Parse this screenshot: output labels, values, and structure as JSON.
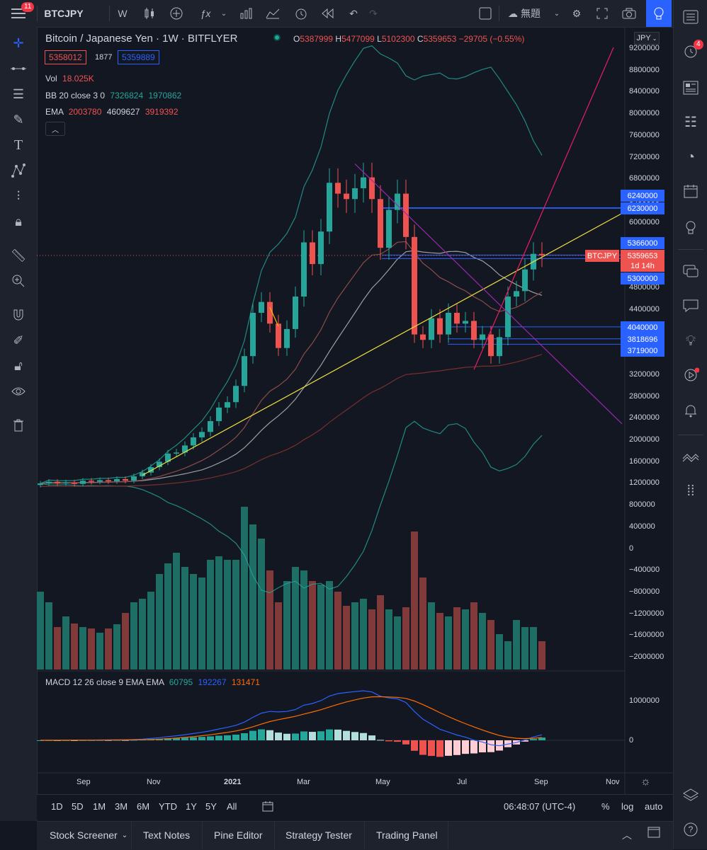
{
  "topbar": {
    "menu_badge": "11",
    "symbol": "BTCJPY",
    "interval": "W",
    "layout_name": "無題"
  },
  "legend": {
    "title": "Bitcoin / Japanese Yen · 1W · BITFLYER",
    "o_label": "O",
    "o": "5387999",
    "h_label": "H",
    "h": "5477099",
    "l_label": "L",
    "l": "5102300",
    "c_label": "C",
    "c": "5359653",
    "change": "−29705 (−0.55%)",
    "bid": "5358012",
    "spread": "1877",
    "ask": "5359889",
    "vol_label": "Vol",
    "vol": "18.025K",
    "bb_label": "BB 20 close 3 0",
    "bb_v1": "7326824",
    "bb_v2": "1970862",
    "ema_label": "EMA",
    "ema_v1": "2003780",
    "ema_v2": "4609627",
    "ema_v3": "3919392",
    "macd_label": "MACD 12 26 close 9 EMA EMA",
    "macd_v1": "60795",
    "macd_v2": "192267",
    "macd_v3": "131471"
  },
  "currency_select": "JPY",
  "price_axis": [
    "9200000",
    "8800000",
    "8400000",
    "8000000",
    "7600000",
    "7200000",
    "6800000",
    "6400000",
    "6000000",
    "5600000",
    "5200000",
    "4800000",
    "4400000",
    "4000000",
    "3600000",
    "3200000",
    "2800000",
    "2400000",
    "2000000",
    "1600000",
    "1200000",
    "800000",
    "400000",
    "0",
    "−400000",
    "−800000",
    "−1200000",
    "−1600000",
    "−2000000"
  ],
  "macd_axis": [
    "1000000",
    "0"
  ],
  "price_tags": {
    "p6240000": "6240000",
    "p6230000": "6230000",
    "p5366000": "5366000",
    "p5359653": "5359653",
    "countdown": "1d 14h",
    "symbol_tag": "BTCJPY",
    "p5300000": "5300000",
    "p4040000": "4040000",
    "p3818696": "3818696",
    "p3719000": "3719000"
  },
  "time_axis": [
    "Sep",
    "Nov",
    "2021",
    "Mar",
    "May",
    "Jul",
    "Sep",
    "Nov"
  ],
  "bottombar": {
    "ranges": [
      "1D",
      "5D",
      "1M",
      "3M",
      "6M",
      "YTD",
      "1Y",
      "5Y",
      "All"
    ],
    "clock": "06:48:07 (UTC-4)",
    "percent": "%",
    "log": "log",
    "auto": "auto"
  },
  "panels": [
    "Stock Screener",
    "Text Notes",
    "Pine Editor",
    "Strategy Tester",
    "Trading Panel"
  ],
  "rightbar_badge": "4",
  "colors": {
    "up": "#26a69a",
    "down": "#ef5350",
    "bg": "#131722",
    "blue_line": "#2962ff",
    "yellow": "#f0e040",
    "magenta": "#e91e63",
    "purple": "#9c27b0"
  },
  "chart_data": {
    "type": "candlestick",
    "interval": "1W",
    "ohlc_last": {
      "o": 5387999,
      "h": 5477099,
      "l": 5102300,
      "c": 5359653
    },
    "ylim": [
      -2000000,
      9200000
    ],
    "x_ticks": [
      "Sep",
      "Nov",
      "2021",
      "Mar",
      "May",
      "Jul",
      "Sep",
      "Nov"
    ],
    "closes": [
      1150000,
      1180000,
      1150000,
      1170000,
      1140000,
      1200000,
      1180000,
      1210000,
      1190000,
      1230000,
      1200000,
      1280000,
      1350000,
      1450000,
      1550000,
      1700000,
      1720000,
      1850000,
      2000000,
      2100000,
      2300000,
      2550000,
      2650000,
      2950000,
      3500000,
      4300000,
      4500000,
      4100000,
      3650000,
      4000000,
      4600000,
      5600000,
      5200000,
      5800000,
      6700000,
      6500000,
      6400000,
      6600000,
      6800000,
      6400000,
      5500000,
      6200000,
      6500000,
      5700000,
      3900000,
      3800000,
      4200000,
      3900000,
      4300000,
      4100000,
      4150000,
      3800000,
      3900000,
      3500000,
      3850000,
      4600000,
      4700000,
      5100000,
      5388000,
      5359653
    ],
    "volume_series_visible": true,
    "indicators": [
      "Vol",
      "BB 20 close 3 0",
      "EMA",
      "MACD 12 26 close 9"
    ]
  }
}
